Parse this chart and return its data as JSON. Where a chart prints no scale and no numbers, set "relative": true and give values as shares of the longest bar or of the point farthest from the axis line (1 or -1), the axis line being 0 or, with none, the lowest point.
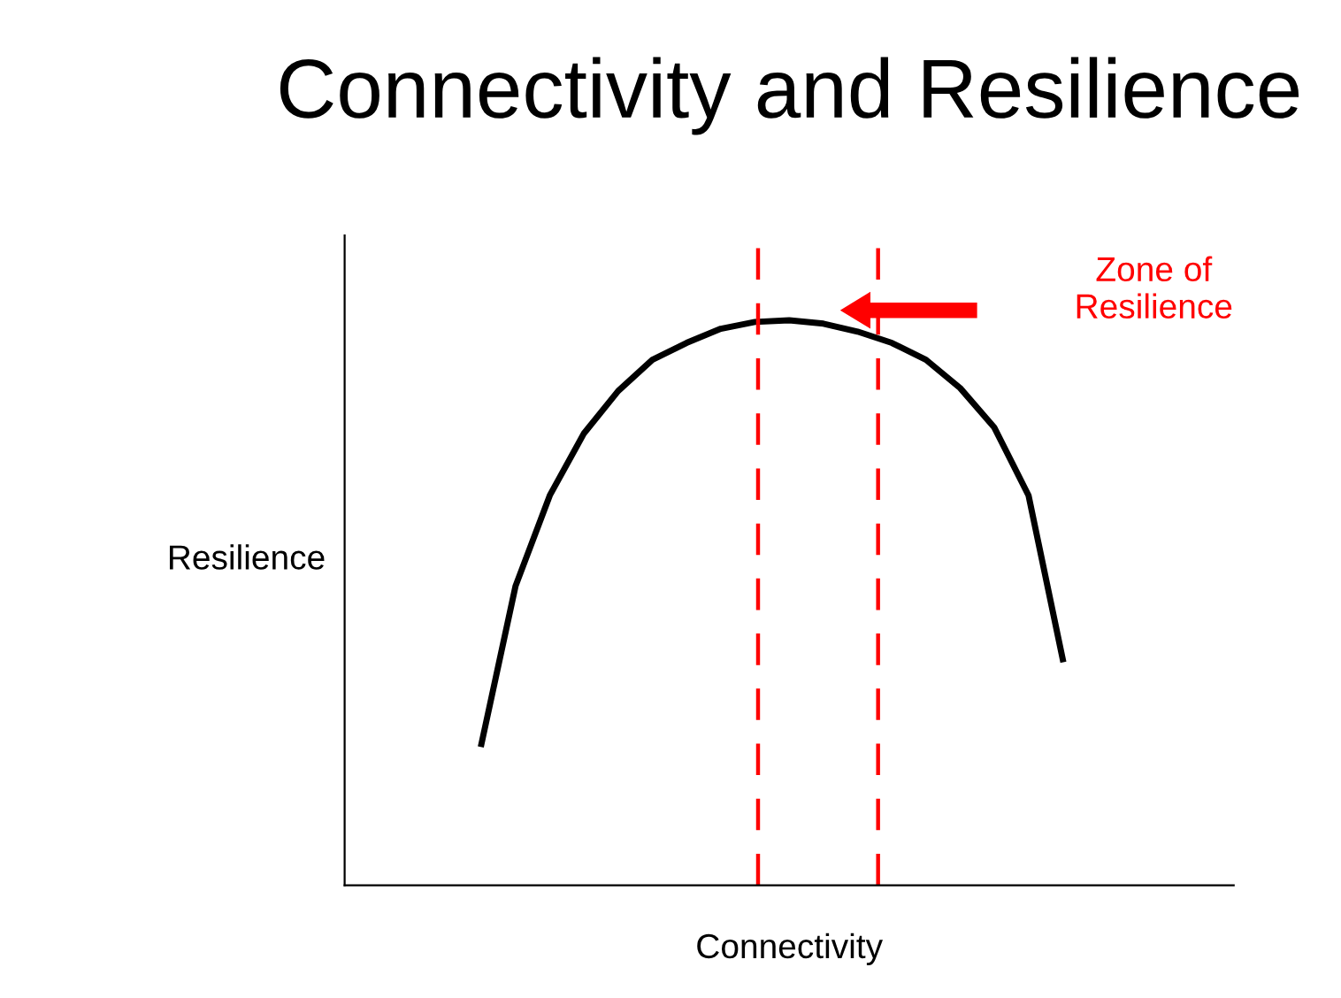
{
  "chart_data": {
    "type": "line",
    "title": "Connectivity and Resilience",
    "xlabel": "Connectivity",
    "ylabel": "Resilience",
    "relative": true,
    "categories": [
      null,
      null,
      null,
      null,
      null,
      null,
      null,
      null,
      null,
      null,
      null,
      null,
      null,
      null,
      null,
      null,
      null,
      null,
      null,
      null,
      null,
      null,
      null,
      null,
      null,
      null,
      null
    ],
    "series": [
      {
        "color": "#000000",
        "values": [
          null,
          null,
          null,
          null,
          0.25,
          0.53,
          0.69,
          0.8,
          0.875,
          0.93,
          0.96,
          0.985,
          0.997,
          1,
          0.994,
          0.98,
          0.96,
          0.93,
          0.88,
          0.81,
          0.69,
          0.4,
          null,
          null,
          null,
          null,
          null
        ]
      }
    ],
    "annotations": [
      "Zone of\nResilience"
    ],
    "grid": false,
    "legend": false,
    "marker": "none",
    "line_style": "solid"
  }
}
